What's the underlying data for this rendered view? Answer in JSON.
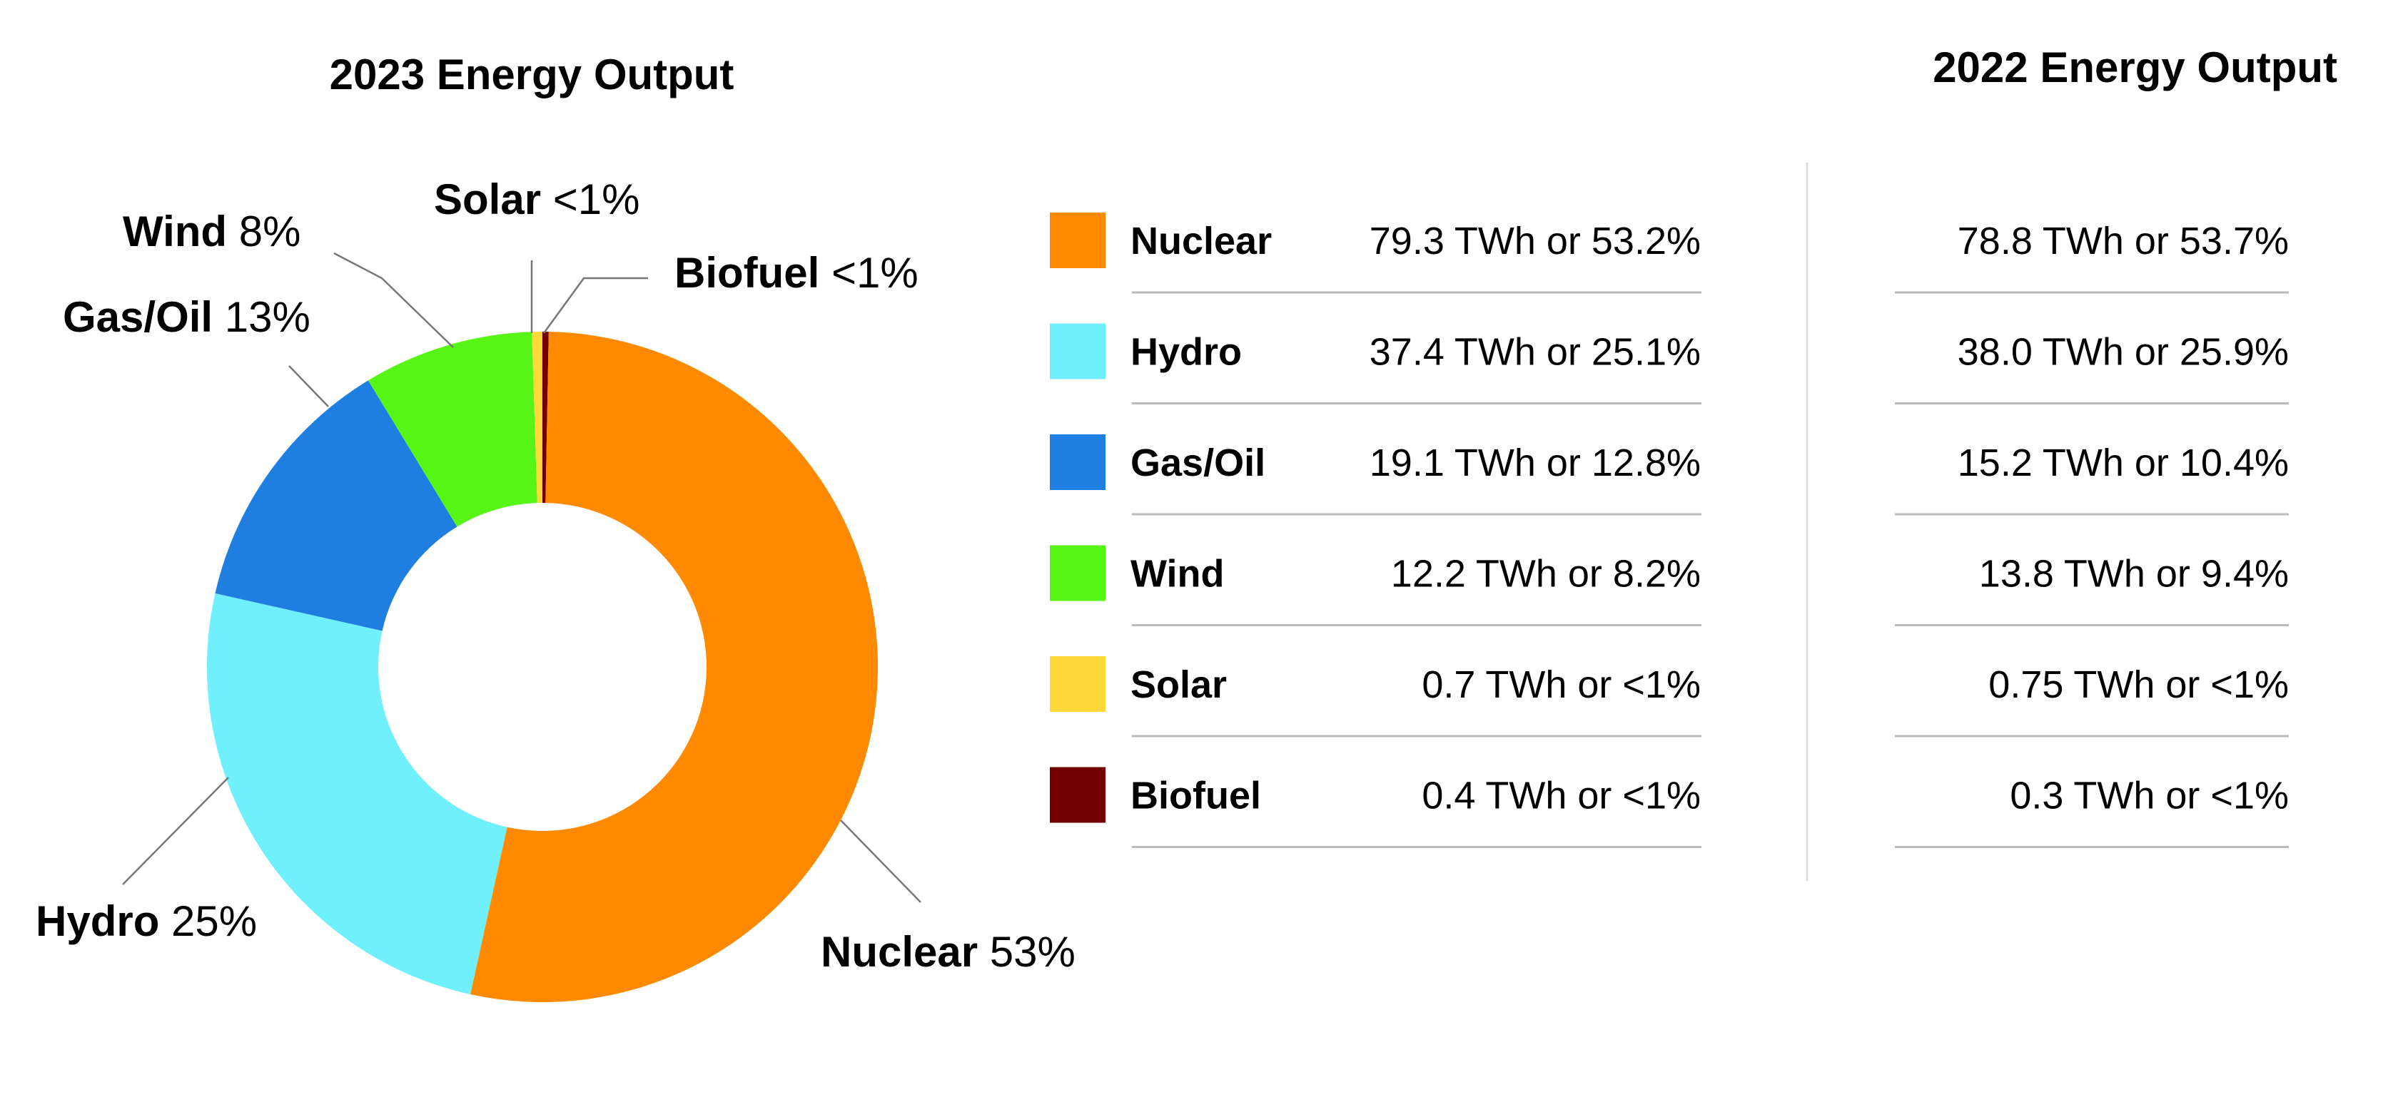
{
  "titles": {
    "y2023": "2023 Energy Output",
    "y2022": "2022 Energy Output"
  },
  "chart_data": {
    "type": "pie",
    "title": "2023 Energy Output",
    "donut": true,
    "categories": [
      "Nuclear",
      "Hydro",
      "Gas/Oil",
      "Wind",
      "Solar",
      "Biofuel"
    ],
    "values_twh": [
      79.3,
      37.4,
      19.1,
      12.2,
      0.7,
      0.4
    ],
    "percents": [
      53.2,
      25.1,
      12.8,
      8.2,
      0.5,
      0.3
    ],
    "colors": [
      "#ff8a00",
      "#6ff0fc",
      "#1f7fe0",
      "#56f516",
      "#ffd83a",
      "#730000"
    ],
    "callouts": [
      {
        "name": "Nuclear",
        "pct": "53%"
      },
      {
        "name": "Hydro",
        "pct": "25%"
      },
      {
        "name": "Gas/Oil",
        "pct": "13%"
      },
      {
        "name": "Wind",
        "pct": "8%"
      },
      {
        "name": "Solar",
        "pct": "<1%"
      },
      {
        "name": "Biofuel",
        "pct": "<1%"
      }
    ],
    "table": {
      "rows": [
        {
          "name": "Nuclear",
          "v2023": "79.3 TWh or 53.2%",
          "v2022": "78.8 TWh or 53.7%"
        },
        {
          "name": "Hydro",
          "v2023": "37.4 TWh or 25.1%",
          "v2022": "38.0 TWh or 25.9%"
        },
        {
          "name": "Gas/Oil",
          "v2023": "19.1 TWh or 12.8%",
          "v2022": "15.2 TWh or 10.4%"
        },
        {
          "name": "Wind",
          "v2023": "12.2 TWh or 8.2%",
          "v2022": "13.8 TWh or 9.4%"
        },
        {
          "name": "Solar",
          "v2023": "0.7 TWh or <1%",
          "v2022": "0.75 TWh or <1%"
        },
        {
          "name": "Biofuel",
          "v2023": "0.4 TWh or <1%",
          "v2022": "0.3 TWh or <1%"
        }
      ]
    }
  }
}
